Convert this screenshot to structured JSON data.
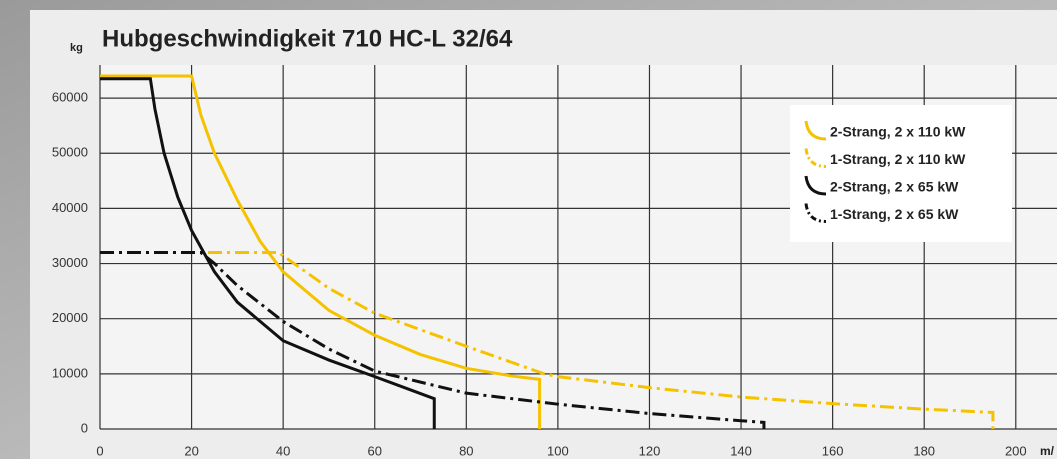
{
  "chart_data": {
    "type": "line",
    "title": "Hubgeschwindigkeit 710 HC-L 32/64",
    "y_label": "kg",
    "x_label": "m/",
    "xlim": [
      0,
      209
    ],
    "ylim": [
      0,
      66000
    ],
    "xticks": [
      0,
      20,
      40,
      60,
      80,
      100,
      120,
      140,
      160,
      180,
      200
    ],
    "yticks": [
      0,
      10000,
      20000,
      30000,
      40000,
      50000,
      60000
    ],
    "grid": true,
    "legend": "upper right",
    "series": [
      {
        "name": "2-Strang, 2 x 110 kW",
        "color": "#f5c200",
        "dash": "solid",
        "x": [
          0,
          20,
          22,
          25,
          30,
          35,
          40,
          50,
          60,
          70,
          80,
          90,
          96,
          96
        ],
        "values": [
          64000,
          64000,
          57000,
          50000,
          41500,
          34000,
          28500,
          21500,
          17000,
          13500,
          11000,
          9600,
          9000,
          0
        ]
      },
      {
        "name": "1-Strang, 2 x 110 kW",
        "color": "#f5c200",
        "dash": "dashdot",
        "x": [
          0,
          39,
          50,
          60,
          80,
          97,
          100,
          120,
          140,
          160,
          180,
          195,
          195
        ],
        "values": [
          32000,
          32000,
          25500,
          21000,
          15000,
          10000,
          9500,
          7500,
          5800,
          4600,
          3600,
          3000,
          0
        ]
      },
      {
        "name": "2-Strang, 2 x 65 kW",
        "color": "#111111",
        "dash": "solid",
        "x": [
          0,
          11,
          12,
          14,
          17,
          20,
          25,
          30,
          40,
          50,
          60,
          73,
          73
        ],
        "values": [
          63500,
          63500,
          58000,
          50000,
          42000,
          36000,
          28500,
          23000,
          16000,
          12500,
          9500,
          5500,
          0
        ]
      },
      {
        "name": "1-Strang, 2 x 65 kW",
        "color": "#111111",
        "dash": "dashdot",
        "x": [
          0,
          22,
          25,
          30,
          40,
          50,
          60,
          80,
          100,
          120,
          140,
          145,
          145
        ],
        "values": [
          32000,
          32000,
          30000,
          26000,
          19500,
          14500,
          10500,
          6500,
          4500,
          2800,
          1500,
          1200,
          0
        ]
      }
    ]
  }
}
